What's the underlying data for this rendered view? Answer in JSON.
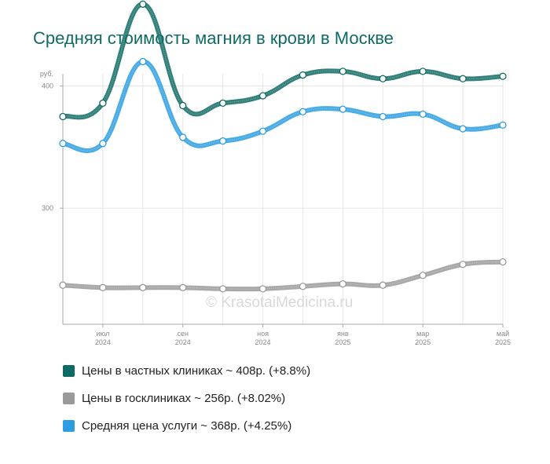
{
  "title": "Средняя стоимость магния в крови в Москве",
  "watermark": "© KrasotaiMedicina.ru",
  "colors": {
    "private": "#0f6b63",
    "public": "#9a9a9a",
    "average": "#2b9de0"
  },
  "legend": [
    {
      "label": "Цены в частных клиниках ~ 408р. (+8.8%)",
      "color": "#0f6b63"
    },
    {
      "label": "Цены в госклиниках ~ 256р. (+8.02%)",
      "color": "#9a9a9a"
    },
    {
      "label": "Средняя цена услуги ~ 368р. (+4.25%)",
      "color": "#2b9de0"
    }
  ],
  "chart_data": {
    "type": "line",
    "ylabel": "руб.",
    "ylim": [
      205,
      410
    ],
    "y_ticks": [
      300,
      400
    ],
    "x": [
      "2024-06",
      "2024-07",
      "2024-08",
      "2024-09",
      "2024-10",
      "2024-11",
      "2024-12",
      "2025-01",
      "2025-02",
      "2025-03",
      "2025-04",
      "2025-05"
    ],
    "x_tick_labels": [
      {
        "x": "2024-07",
        "month": "июл",
        "year": "2024"
      },
      {
        "x": "2024-09",
        "month": "сен",
        "year": "2024"
      },
      {
        "x": "2024-11",
        "month": "ноя",
        "year": "2024"
      },
      {
        "x": "2025-01",
        "month": "янв",
        "year": "2025"
      },
      {
        "x": "2025-03",
        "month": "мар",
        "year": "2025"
      },
      {
        "x": "2025-05",
        "month": "май",
        "year": "2025"
      }
    ],
    "grid": true,
    "legend_position": "bottom",
    "series": [
      {
        "name": "Цены в частных клиниках ~ 408р. (+8.8%)",
        "color": "#0f6b63",
        "values": [
          375,
          386,
          467,
          384,
          386,
          392,
          409,
          412,
          406,
          412,
          406,
          408
        ]
      },
      {
        "name": "Цены в госклиниках ~ 256р. (+8.02%)",
        "color": "#9a9a9a",
        "values": [
          237,
          235,
          235,
          235,
          234,
          234,
          236,
          238,
          237,
          245,
          254,
          256
        ]
      },
      {
        "name": "Средняя цена услуги ~ 368р. (+4.25%)",
        "color": "#2b9de0",
        "values": [
          353,
          353,
          420,
          358,
          355,
          363,
          379,
          381,
          375,
          377,
          365,
          368
        ]
      }
    ]
  }
}
